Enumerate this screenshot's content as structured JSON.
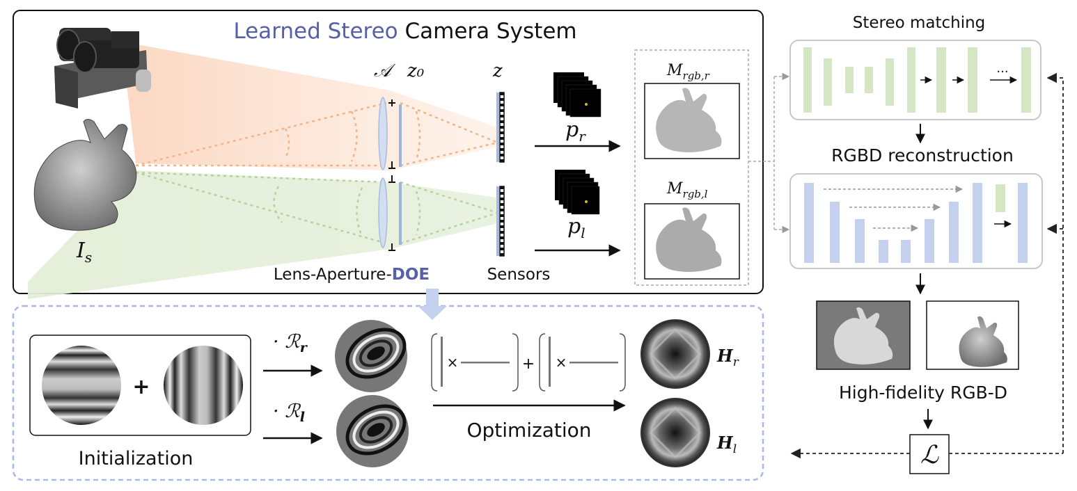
{
  "title": {
    "part1": "Learned Stereo",
    "part2": "Camera System",
    "accent_color": "#5560a8"
  },
  "symbols": {
    "aperture": "𝒜",
    "z0": "z₀",
    "z": "z",
    "source_image": "I",
    "source_sub": "s",
    "psf_right": "p",
    "psf_right_sub": "r",
    "psf_left": "p",
    "psf_left_sub": "l",
    "meas_right": "M",
    "meas_right_sub": "rgb,r",
    "meas_left": "M",
    "meas_left_sub": "rgb,l",
    "rot_right": "· ℛ",
    "rot_right_sub": "r",
    "rot_left": "· ℛ",
    "rot_left_sub": "l",
    "height_right": "H",
    "height_right_sub": "r",
    "height_left": "H",
    "height_left_sub": "l",
    "loss": "ℒ",
    "plus": "+",
    "times": "×"
  },
  "labels": {
    "lens_prefix": "Lens-Aperture-",
    "lens_doe": "DOE",
    "sensors": "Sensors",
    "stereo_matching": "Stereo matching",
    "rgbd_reconstruction": "RGBD reconstruction",
    "high_fidelity": "High-fidelity RGB-D",
    "initialization": "Initialization",
    "optimization": "Optimization",
    "ellipsis": "..."
  },
  "colors": {
    "accent": "#5560a8",
    "green_block": "#d5e6c4",
    "blue_block": "#c3d0ee",
    "orange_ray": "#f6c29c",
    "green_ray": "#c7ddb2",
    "dashed_box": "#a9b9e4"
  }
}
